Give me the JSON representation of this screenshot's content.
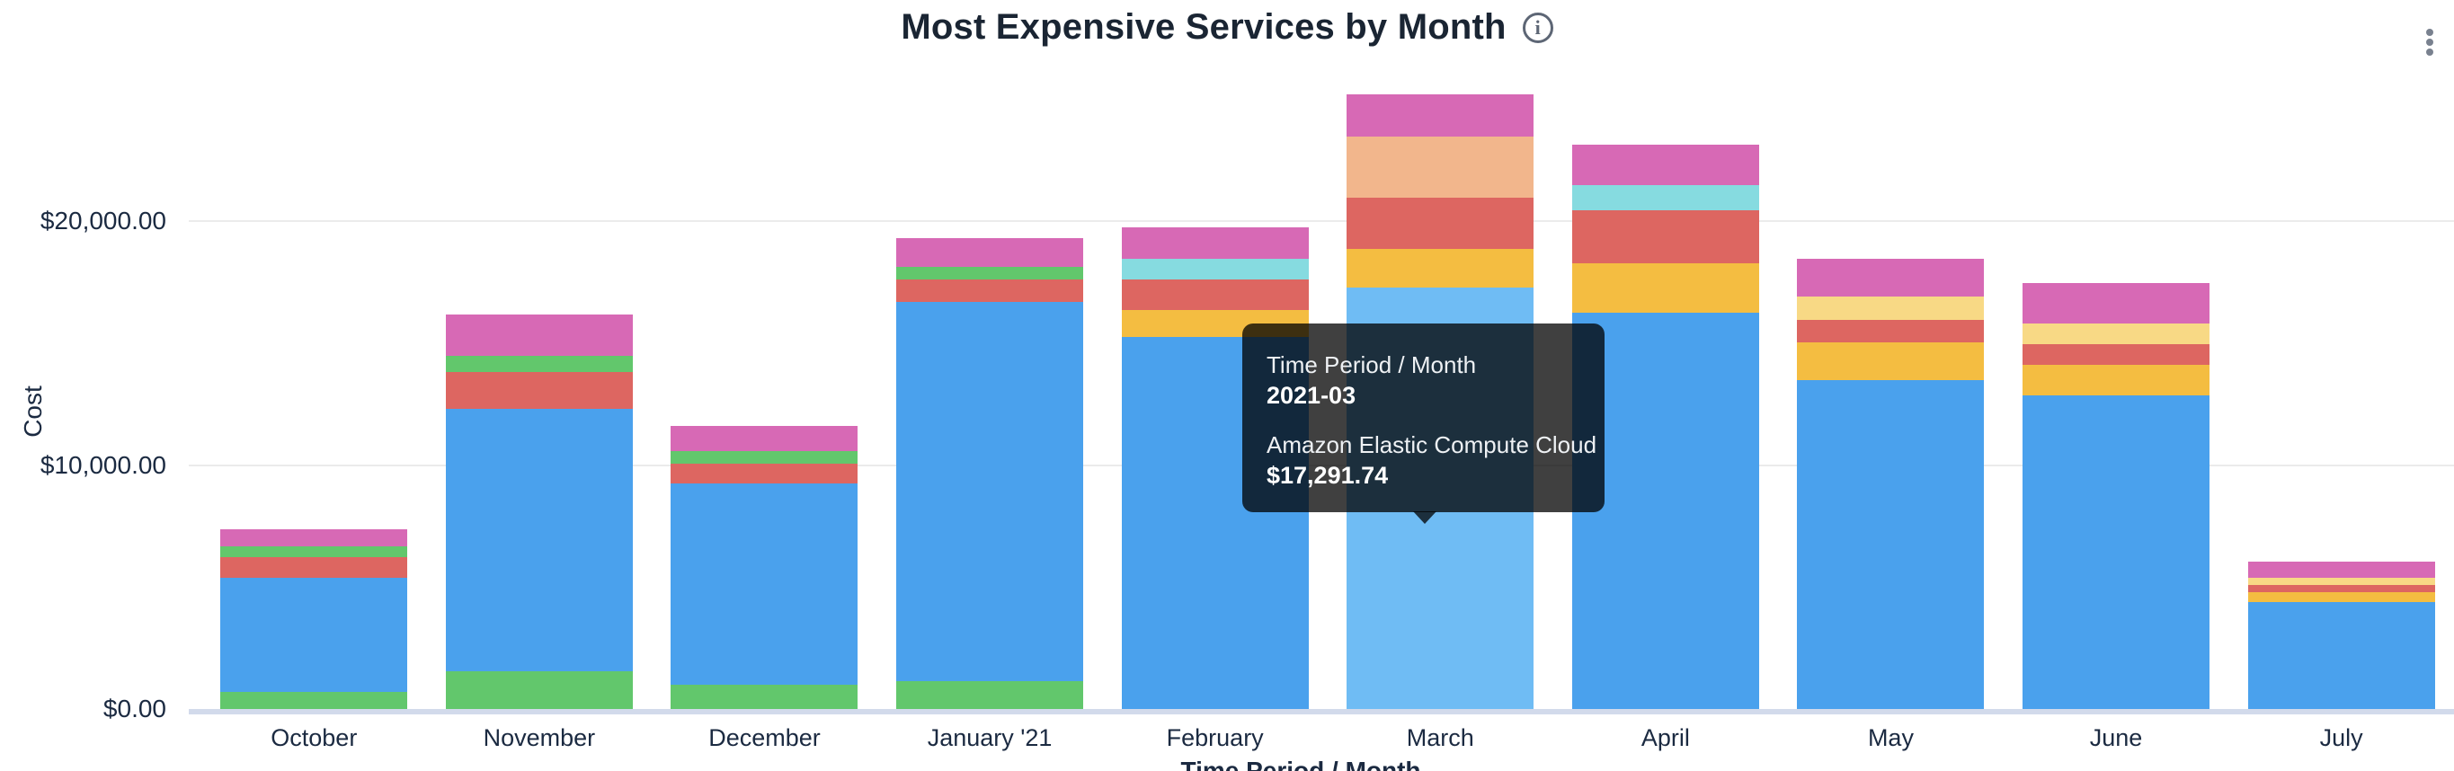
{
  "header": {
    "title": "Most Expensive Services by Month",
    "info_icon_glyph": "i"
  },
  "tooltip": {
    "dimension_label": "Time Period / Month",
    "period": "2021-03",
    "service": "Amazon Elastic Compute Cloud",
    "amount": "$17,291.74"
  },
  "chart_data": {
    "type": "bar",
    "stacked": true,
    "title": "Most Expensive Services by Month",
    "xlabel": "Time Period / Month",
    "ylabel": "Cost",
    "legend_position": "none",
    "grid": true,
    "ylim": [
      0,
      29000
    ],
    "y_ticks": [
      {
        "label": "$0.00",
        "value": 0
      },
      {
        "label": "$10,000.00",
        "value": 10000
      },
      {
        "label": "$20,000.00",
        "value": 20000
      }
    ],
    "colors": {
      "blue": "#4AA1ED",
      "blue_hover": "#6FBCF4",
      "green": "#62C76C",
      "red": "#DD6661",
      "pink": "#D769B5",
      "yellow": "#F4BD41",
      "pale_yellow": "#F8D985",
      "cyan": "#86DBE0",
      "peach": "#F2B68C"
    },
    "known_series": {
      "blue": "Amazon Elastic Compute Cloud"
    },
    "categories": [
      "October",
      "November",
      "December",
      "January '21",
      "February",
      "March",
      "April",
      "May",
      "June",
      "July"
    ],
    "bars": [
      {
        "month": "October",
        "segments": [
          {
            "color": "green",
            "value": 700
          },
          {
            "color": "blue",
            "value": 4670
          },
          {
            "color": "red",
            "value": 845
          },
          {
            "color": "green",
            "value": 440
          },
          {
            "color": "pink",
            "value": 700
          }
        ]
      },
      {
        "month": "November",
        "segments": [
          {
            "color": "green",
            "value": 1550
          },
          {
            "color": "blue",
            "value": 10760
          },
          {
            "color": "red",
            "value": 1510
          },
          {
            "color": "green",
            "value": 660
          },
          {
            "color": "pink",
            "value": 1700
          }
        ]
      },
      {
        "month": "December",
        "segments": [
          {
            "color": "green",
            "value": 1000
          },
          {
            "color": "blue",
            "value": 8250
          },
          {
            "color": "red",
            "value": 810
          },
          {
            "color": "green",
            "value": 515
          },
          {
            "color": "pink",
            "value": 1030
          }
        ]
      },
      {
        "month": "January '21",
        "segments": [
          {
            "color": "green",
            "value": 1150
          },
          {
            "color": "blue",
            "value": 15550
          },
          {
            "color": "red",
            "value": 920
          },
          {
            "color": "green",
            "value": 515
          },
          {
            "color": "pink",
            "value": 1165
          }
        ]
      },
      {
        "month": "February",
        "segments": [
          {
            "color": "blue",
            "value": 15260
          },
          {
            "color": "yellow",
            "value": 1100
          },
          {
            "color": "red",
            "value": 1250
          },
          {
            "color": "cyan",
            "value": 845
          },
          {
            "color": "pink",
            "value": 1290
          }
        ]
      },
      {
        "month": "March",
        "segments": [
          {
            "color": "blue",
            "value": 17291.74,
            "highlight": true
          },
          {
            "color": "yellow",
            "value": 1580
          },
          {
            "color": "red",
            "value": 2100
          },
          {
            "color": "peach",
            "value": 2500
          },
          {
            "color": "pink",
            "value": 1730
          }
        ]
      },
      {
        "month": "April",
        "segments": [
          {
            "color": "blue",
            "value": 16240
          },
          {
            "color": "yellow",
            "value": 2020
          },
          {
            "color": "red",
            "value": 2170
          },
          {
            "color": "cyan",
            "value": 1030
          },
          {
            "color": "pink",
            "value": 1690
          }
        ]
      },
      {
        "month": "May",
        "segments": [
          {
            "color": "blue",
            "value": 13500
          },
          {
            "color": "yellow",
            "value": 1545
          },
          {
            "color": "red",
            "value": 920
          },
          {
            "color": "pale_yellow",
            "value": 955
          },
          {
            "color": "pink",
            "value": 1545
          }
        ]
      },
      {
        "month": "June",
        "segments": [
          {
            "color": "blue",
            "value": 12870
          },
          {
            "color": "yellow",
            "value": 1250
          },
          {
            "color": "red",
            "value": 845
          },
          {
            "color": "pale_yellow",
            "value": 845
          },
          {
            "color": "pink",
            "value": 1655
          }
        ]
      },
      {
        "month": "July",
        "segments": [
          {
            "color": "blue",
            "value": 4375
          },
          {
            "color": "yellow",
            "value": 405
          },
          {
            "color": "red",
            "value": 295
          },
          {
            "color": "pale_yellow",
            "value": 295
          },
          {
            "color": "pink",
            "value": 660
          }
        ]
      }
    ],
    "hovered_bar": "March"
  }
}
